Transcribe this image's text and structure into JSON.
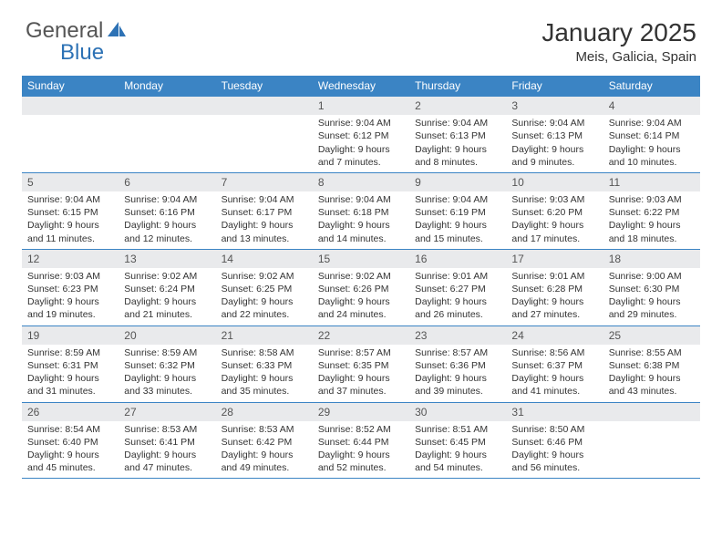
{
  "brand": {
    "text_general": "General",
    "text_blue": "Blue",
    "icon_fill": "#2d72b5"
  },
  "header": {
    "month_title": "January 2025",
    "location": "Meis, Galicia, Spain"
  },
  "colors": {
    "header_band": "#3b84c4",
    "day_number_bg": "#e9eaec",
    "text": "#333333",
    "rule": "#3b84c4"
  },
  "day_names": [
    "Sunday",
    "Monday",
    "Tuesday",
    "Wednesday",
    "Thursday",
    "Friday",
    "Saturday"
  ],
  "weeks": [
    [
      {
        "day": "",
        "sunrise": "",
        "sunset": "",
        "daylight1": "",
        "daylight2": ""
      },
      {
        "day": "",
        "sunrise": "",
        "sunset": "",
        "daylight1": "",
        "daylight2": ""
      },
      {
        "day": "",
        "sunrise": "",
        "sunset": "",
        "daylight1": "",
        "daylight2": ""
      },
      {
        "day": "1",
        "sunrise": "Sunrise: 9:04 AM",
        "sunset": "Sunset: 6:12 PM",
        "daylight1": "Daylight: 9 hours",
        "daylight2": "and 7 minutes."
      },
      {
        "day": "2",
        "sunrise": "Sunrise: 9:04 AM",
        "sunset": "Sunset: 6:13 PM",
        "daylight1": "Daylight: 9 hours",
        "daylight2": "and 8 minutes."
      },
      {
        "day": "3",
        "sunrise": "Sunrise: 9:04 AM",
        "sunset": "Sunset: 6:13 PM",
        "daylight1": "Daylight: 9 hours",
        "daylight2": "and 9 minutes."
      },
      {
        "day": "4",
        "sunrise": "Sunrise: 9:04 AM",
        "sunset": "Sunset: 6:14 PM",
        "daylight1": "Daylight: 9 hours",
        "daylight2": "and 10 minutes."
      }
    ],
    [
      {
        "day": "5",
        "sunrise": "Sunrise: 9:04 AM",
        "sunset": "Sunset: 6:15 PM",
        "daylight1": "Daylight: 9 hours",
        "daylight2": "and 11 minutes."
      },
      {
        "day": "6",
        "sunrise": "Sunrise: 9:04 AM",
        "sunset": "Sunset: 6:16 PM",
        "daylight1": "Daylight: 9 hours",
        "daylight2": "and 12 minutes."
      },
      {
        "day": "7",
        "sunrise": "Sunrise: 9:04 AM",
        "sunset": "Sunset: 6:17 PM",
        "daylight1": "Daylight: 9 hours",
        "daylight2": "and 13 minutes."
      },
      {
        "day": "8",
        "sunrise": "Sunrise: 9:04 AM",
        "sunset": "Sunset: 6:18 PM",
        "daylight1": "Daylight: 9 hours",
        "daylight2": "and 14 minutes."
      },
      {
        "day": "9",
        "sunrise": "Sunrise: 9:04 AM",
        "sunset": "Sunset: 6:19 PM",
        "daylight1": "Daylight: 9 hours",
        "daylight2": "and 15 minutes."
      },
      {
        "day": "10",
        "sunrise": "Sunrise: 9:03 AM",
        "sunset": "Sunset: 6:20 PM",
        "daylight1": "Daylight: 9 hours",
        "daylight2": "and 17 minutes."
      },
      {
        "day": "11",
        "sunrise": "Sunrise: 9:03 AM",
        "sunset": "Sunset: 6:22 PM",
        "daylight1": "Daylight: 9 hours",
        "daylight2": "and 18 minutes."
      }
    ],
    [
      {
        "day": "12",
        "sunrise": "Sunrise: 9:03 AM",
        "sunset": "Sunset: 6:23 PM",
        "daylight1": "Daylight: 9 hours",
        "daylight2": "and 19 minutes."
      },
      {
        "day": "13",
        "sunrise": "Sunrise: 9:02 AM",
        "sunset": "Sunset: 6:24 PM",
        "daylight1": "Daylight: 9 hours",
        "daylight2": "and 21 minutes."
      },
      {
        "day": "14",
        "sunrise": "Sunrise: 9:02 AM",
        "sunset": "Sunset: 6:25 PM",
        "daylight1": "Daylight: 9 hours",
        "daylight2": "and 22 minutes."
      },
      {
        "day": "15",
        "sunrise": "Sunrise: 9:02 AM",
        "sunset": "Sunset: 6:26 PM",
        "daylight1": "Daylight: 9 hours",
        "daylight2": "and 24 minutes."
      },
      {
        "day": "16",
        "sunrise": "Sunrise: 9:01 AM",
        "sunset": "Sunset: 6:27 PM",
        "daylight1": "Daylight: 9 hours",
        "daylight2": "and 26 minutes."
      },
      {
        "day": "17",
        "sunrise": "Sunrise: 9:01 AM",
        "sunset": "Sunset: 6:28 PM",
        "daylight1": "Daylight: 9 hours",
        "daylight2": "and 27 minutes."
      },
      {
        "day": "18",
        "sunrise": "Sunrise: 9:00 AM",
        "sunset": "Sunset: 6:30 PM",
        "daylight1": "Daylight: 9 hours",
        "daylight2": "and 29 minutes."
      }
    ],
    [
      {
        "day": "19",
        "sunrise": "Sunrise: 8:59 AM",
        "sunset": "Sunset: 6:31 PM",
        "daylight1": "Daylight: 9 hours",
        "daylight2": "and 31 minutes."
      },
      {
        "day": "20",
        "sunrise": "Sunrise: 8:59 AM",
        "sunset": "Sunset: 6:32 PM",
        "daylight1": "Daylight: 9 hours",
        "daylight2": "and 33 minutes."
      },
      {
        "day": "21",
        "sunrise": "Sunrise: 8:58 AM",
        "sunset": "Sunset: 6:33 PM",
        "daylight1": "Daylight: 9 hours",
        "daylight2": "and 35 minutes."
      },
      {
        "day": "22",
        "sunrise": "Sunrise: 8:57 AM",
        "sunset": "Sunset: 6:35 PM",
        "daylight1": "Daylight: 9 hours",
        "daylight2": "and 37 minutes."
      },
      {
        "day": "23",
        "sunrise": "Sunrise: 8:57 AM",
        "sunset": "Sunset: 6:36 PM",
        "daylight1": "Daylight: 9 hours",
        "daylight2": "and 39 minutes."
      },
      {
        "day": "24",
        "sunrise": "Sunrise: 8:56 AM",
        "sunset": "Sunset: 6:37 PM",
        "daylight1": "Daylight: 9 hours",
        "daylight2": "and 41 minutes."
      },
      {
        "day": "25",
        "sunrise": "Sunrise: 8:55 AM",
        "sunset": "Sunset: 6:38 PM",
        "daylight1": "Daylight: 9 hours",
        "daylight2": "and 43 minutes."
      }
    ],
    [
      {
        "day": "26",
        "sunrise": "Sunrise: 8:54 AM",
        "sunset": "Sunset: 6:40 PM",
        "daylight1": "Daylight: 9 hours",
        "daylight2": "and 45 minutes."
      },
      {
        "day": "27",
        "sunrise": "Sunrise: 8:53 AM",
        "sunset": "Sunset: 6:41 PM",
        "daylight1": "Daylight: 9 hours",
        "daylight2": "and 47 minutes."
      },
      {
        "day": "28",
        "sunrise": "Sunrise: 8:53 AM",
        "sunset": "Sunset: 6:42 PM",
        "daylight1": "Daylight: 9 hours",
        "daylight2": "and 49 minutes."
      },
      {
        "day": "29",
        "sunrise": "Sunrise: 8:52 AM",
        "sunset": "Sunset: 6:44 PM",
        "daylight1": "Daylight: 9 hours",
        "daylight2": "and 52 minutes."
      },
      {
        "day": "30",
        "sunrise": "Sunrise: 8:51 AM",
        "sunset": "Sunset: 6:45 PM",
        "daylight1": "Daylight: 9 hours",
        "daylight2": "and 54 minutes."
      },
      {
        "day": "31",
        "sunrise": "Sunrise: 8:50 AM",
        "sunset": "Sunset: 6:46 PM",
        "daylight1": "Daylight: 9 hours",
        "daylight2": "and 56 minutes."
      },
      {
        "day": "",
        "sunrise": "",
        "sunset": "",
        "daylight1": "",
        "daylight2": ""
      }
    ]
  ]
}
